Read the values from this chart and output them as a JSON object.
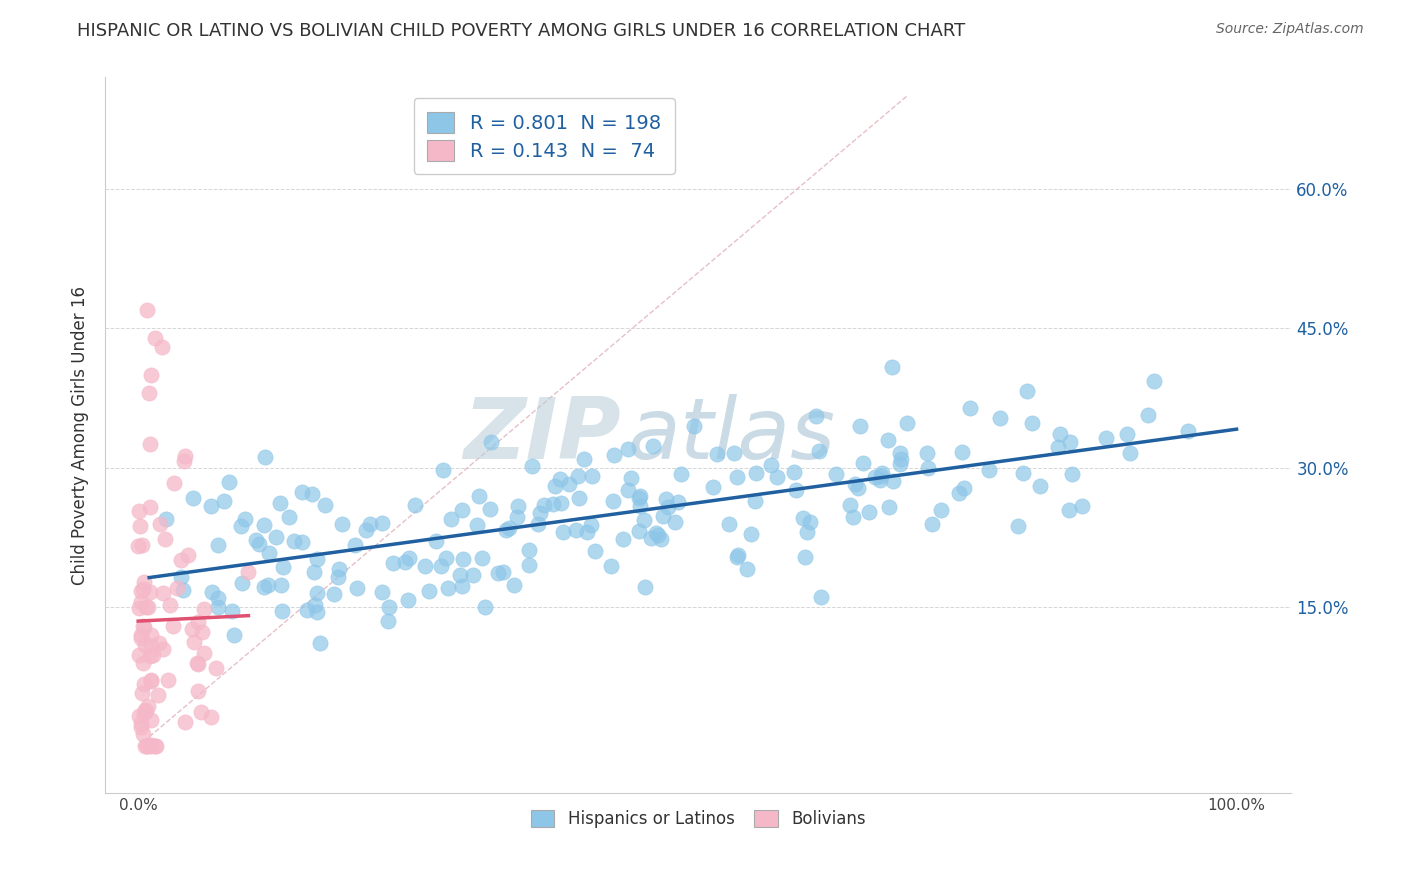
{
  "title": "HISPANIC OR LATINO VS BOLIVIAN CHILD POVERTY AMONG GIRLS UNDER 16 CORRELATION CHART",
  "source": "Source: ZipAtlas.com",
  "ylabel_label": "Child Poverty Among Girls Under 16",
  "ytick_labels": [
    "15.0%",
    "30.0%",
    "45.0%",
    "60.0%"
  ],
  "ytick_values": [
    0.15,
    0.3,
    0.45,
    0.6
  ],
  "xtick_labels": [
    "0.0%",
    "100.0%"
  ],
  "xtick_values": [
    0.0,
    1.0
  ],
  "xlim": [
    -0.03,
    1.05
  ],
  "ylim": [
    -0.05,
    0.72
  ],
  "blue_color": "#8ec6e8",
  "pink_color": "#f5b8c8",
  "blue_line_color": "#2060a0",
  "pink_line_color": "#e05070",
  "diagonal_color": "#e0b0b8",
  "watermark_zip_color": "#b0c0d0",
  "watermark_atlas_color": "#9ab8d0",
  "r_blue": 0.801,
  "n_blue": 198,
  "r_pink": 0.143,
  "n_pink": 74,
  "background_color": "#ffffff",
  "grid_color": "#cccccc",
  "title_fontsize": 13,
  "axis_label_fontsize": 12,
  "tick_fontsize": 11,
  "legend_fontsize": 14
}
